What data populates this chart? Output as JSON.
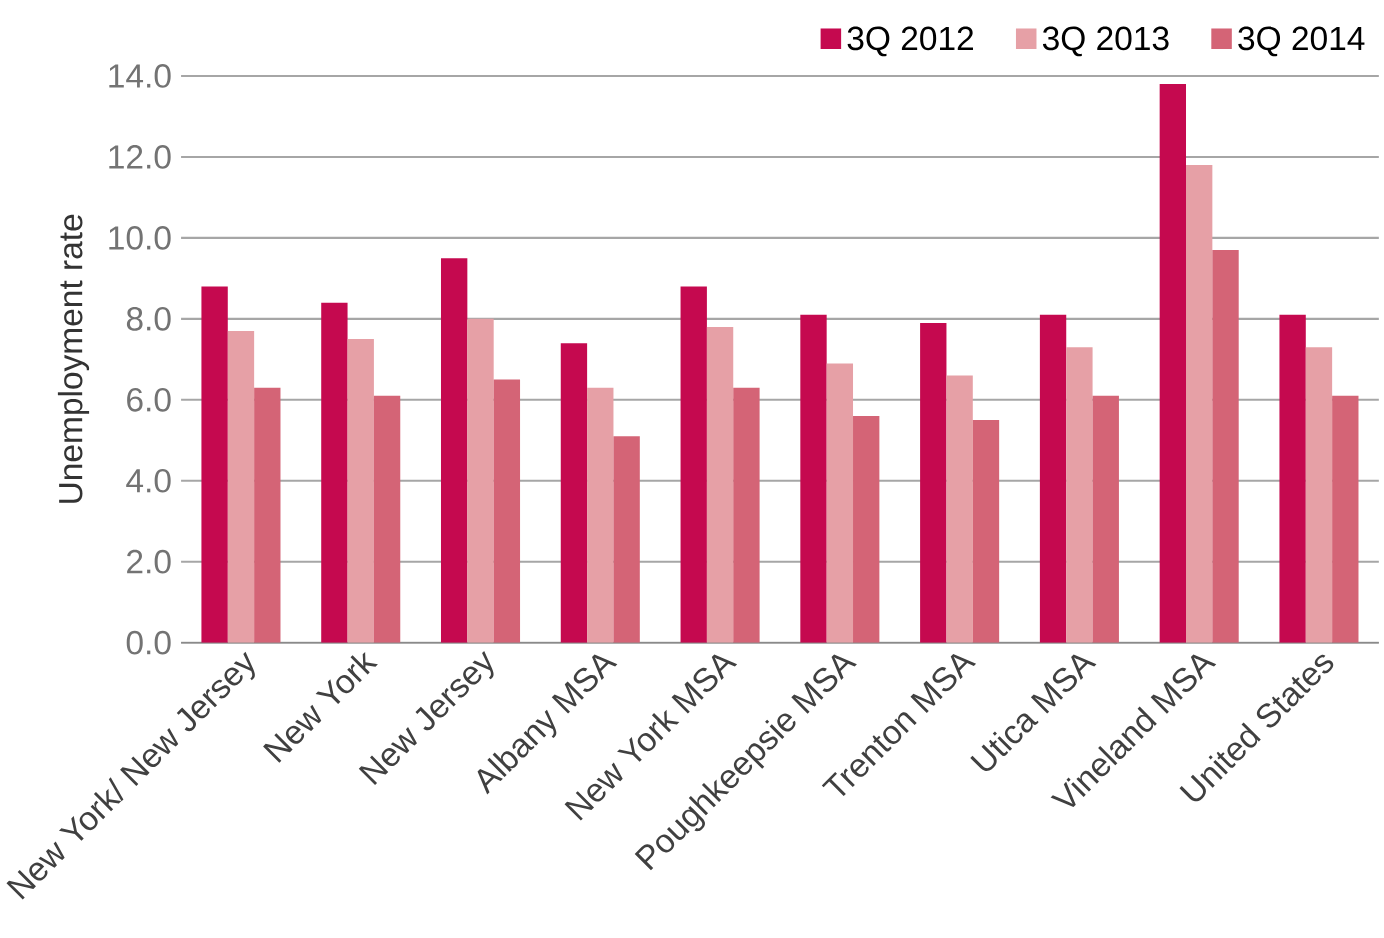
{
  "chart_data": {
    "type": "bar",
    "ylabel": "Unemployment rate",
    "categories": [
      "New York/ New Jersey",
      "New York",
      "New Jersey",
      "Albany MSA",
      "New York MSA",
      "Poughkeepsie MSA",
      "Trenton MSA",
      "Utica MSA",
      "Vineland MSA",
      "United States"
    ],
    "series": [
      {
        "name": "3Q 2012",
        "color": "#c5094f",
        "values": [
          8.8,
          8.4,
          9.5,
          7.4,
          8.8,
          8.1,
          7.9,
          8.1,
          13.8,
          8.1
        ]
      },
      {
        "name": "3Q 2013",
        "color": "#e6a0a6",
        "values": [
          7.7,
          7.5,
          8.0,
          6.3,
          7.8,
          6.9,
          6.6,
          7.3,
          11.8,
          7.3
        ]
      },
      {
        "name": "3Q 2014",
        "color": "#d46476",
        "values": [
          6.3,
          6.1,
          6.5,
          5.1,
          6.3,
          5.6,
          5.5,
          6.1,
          9.7,
          6.1
        ]
      }
    ],
    "ylim": [
      0,
      14
    ],
    "yticks": [
      {
        "value": 0,
        "label": "0.0"
      },
      {
        "value": 2,
        "label": "2.0"
      },
      {
        "value": 4,
        "label": "4.0"
      },
      {
        "value": 6,
        "label": "6.0"
      },
      {
        "value": 8,
        "label": "8.0"
      },
      {
        "value": 10,
        "label": "10.0"
      },
      {
        "value": 12,
        "label": "12.0"
      },
      {
        "value": 14,
        "label": "14.0"
      }
    ],
    "grid": "y",
    "legend": "top right"
  }
}
